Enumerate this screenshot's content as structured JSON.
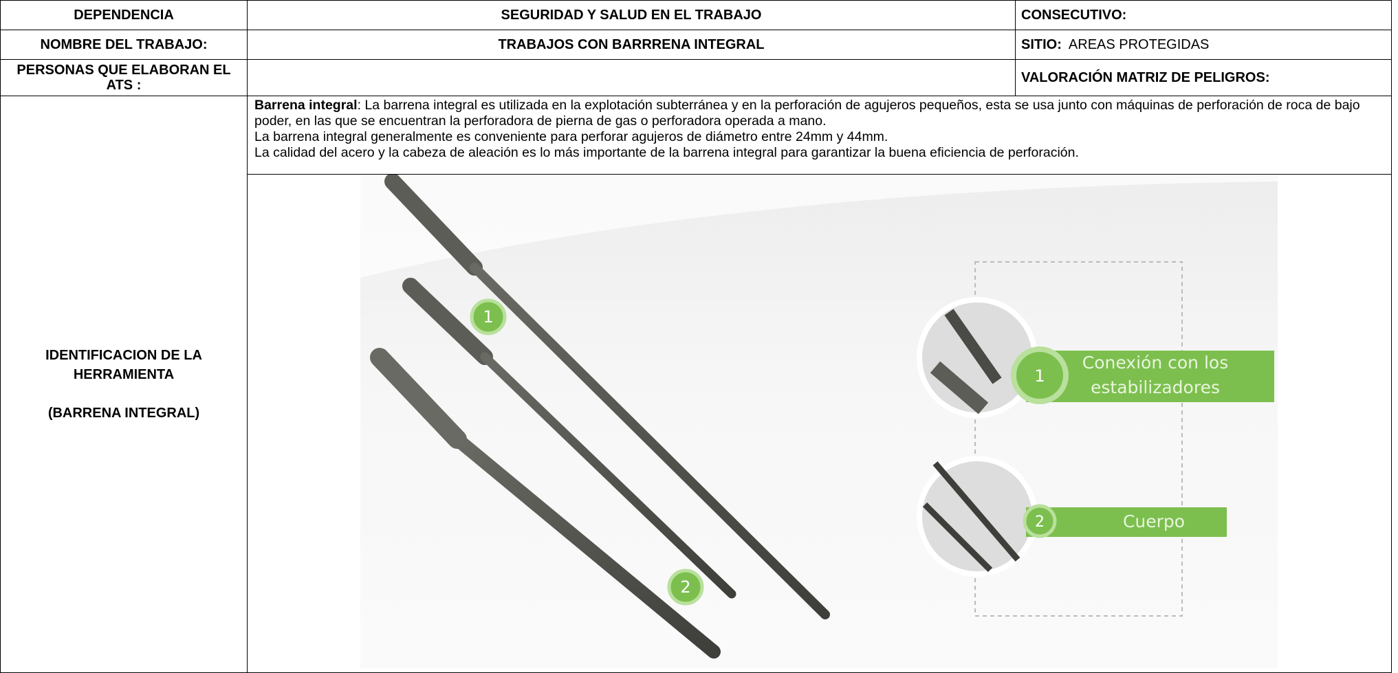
{
  "header": {
    "dependencia_label": "DEPENDENCIA",
    "dependencia_value": "SEGURIDAD Y SALUD EN EL TRABAJO",
    "consecutivo_label": "CONSECUTIVO:",
    "nombre_label": "NOMBRE DEL TRABAJO:",
    "nombre_value": "TRABAJOS CON BARRRENA INTEGRAL",
    "sitio_label": "SITIO:",
    "sitio_value": "AREAS PROTEGIDAS",
    "personas_label": "PERSONAS QUE ELABORAN EL ATS :",
    "valoracion_label": "VALORACIÓN MATRIZ DE PELIGROS:"
  },
  "tool": {
    "label_lines": [
      "IDENTIFICACION DE LA HERRAMIENTA",
      "(BARRENA INTEGRAL)"
    ],
    "description": {
      "term": "Barrena integral",
      "paragraphs": [
        ": La barrena integral es utilizada en la explotación subterránea y en la perforación de agujeros pequeños, esta se usa junto con máquinas de perforación de roca de bajo poder, en las que se encuentran la perforadora de pierna de gas o perforadora operada a mano.",
        "La barrena integral generalmente es conveniente para perforar agujeros de diámetro entre 24mm y 44mm.",
        "La calidad del acero y la cabeza de aleación es lo más importante de la barrena integral para garantizar la buena eficiencia de perforación."
      ]
    },
    "image": {
      "markers": [
        "1",
        "2"
      ],
      "callouts": [
        {
          "number": "1",
          "lines": [
            "Conexión con los",
            "estabilizadores"
          ]
        },
        {
          "number": "2",
          "lines": [
            "Cuerpo"
          ]
        }
      ]
    }
  }
}
